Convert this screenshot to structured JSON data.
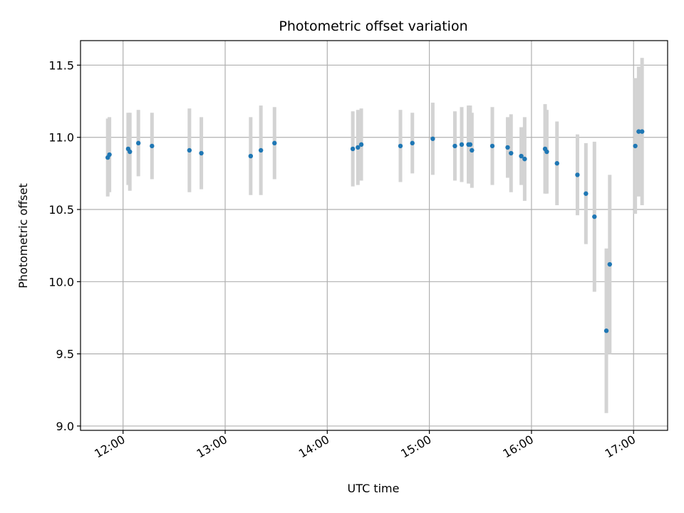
{
  "chart_data": {
    "type": "scatter",
    "title": "Photometric offset variation",
    "xlabel": "UTC time",
    "ylabel": "Photometric offset",
    "xlim": [
      "11:35",
      "17:20"
    ],
    "ylim": [
      8.97,
      11.67
    ],
    "xticks": [
      "12:00",
      "13:00",
      "14:00",
      "15:00",
      "16:00",
      "17:00"
    ],
    "yticks": [
      "9.0",
      "9.5",
      "10.0",
      "10.5",
      "11.0",
      "11.5"
    ],
    "grid": true,
    "colors": {
      "points": "#1f77b4",
      "errorbars": "#d3d3d3",
      "grid": "#b0b0b0"
    },
    "points": [
      {
        "x": "11:51",
        "y": 10.86,
        "yerr": 0.27
      },
      {
        "x": "11:52",
        "y": 10.88,
        "yerr": 0.26
      },
      {
        "x": "12:03",
        "y": 10.92,
        "yerr": 0.25
      },
      {
        "x": "12:04",
        "y": 10.9,
        "yerr": 0.27
      },
      {
        "x": "12:09",
        "y": 10.96,
        "yerr": 0.23
      },
      {
        "x": "12:17",
        "y": 10.94,
        "yerr": 0.23
      },
      {
        "x": "12:39",
        "y": 10.91,
        "yerr": 0.29
      },
      {
        "x": "12:46",
        "y": 10.89,
        "yerr": 0.25
      },
      {
        "x": "13:15",
        "y": 10.87,
        "yerr": 0.27
      },
      {
        "x": "13:21",
        "y": 10.91,
        "yerr": 0.31
      },
      {
        "x": "13:29",
        "y": 10.96,
        "yerr": 0.25
      },
      {
        "x": "14:15",
        "y": 10.92,
        "yerr": 0.26
      },
      {
        "x": "14:18",
        "y": 10.93,
        "yerr": 0.26
      },
      {
        "x": "14:20",
        "y": 10.95,
        "yerr": 0.25
      },
      {
        "x": "14:43",
        "y": 10.94,
        "yerr": 0.25
      },
      {
        "x": "14:50",
        "y": 10.96,
        "yerr": 0.21
      },
      {
        "x": "15:02",
        "y": 10.99,
        "yerr": 0.25
      },
      {
        "x": "15:15",
        "y": 10.94,
        "yerr": 0.24
      },
      {
        "x": "15:19",
        "y": 10.95,
        "yerr": 0.26
      },
      {
        "x": "15:23",
        "y": 10.95,
        "yerr": 0.27
      },
      {
        "x": "15:24",
        "y": 10.95,
        "yerr": 0.27
      },
      {
        "x": "15:25",
        "y": 10.91,
        "yerr": 0.26
      },
      {
        "x": "15:37",
        "y": 10.94,
        "yerr": 0.27
      },
      {
        "x": "15:46",
        "y": 10.93,
        "yerr": 0.21
      },
      {
        "x": "15:48",
        "y": 10.89,
        "yerr": 0.27
      },
      {
        "x": "15:54",
        "y": 10.87,
        "yerr": 0.2
      },
      {
        "x": "15:56",
        "y": 10.85,
        "yerr": 0.29
      },
      {
        "x": "16:08",
        "y": 10.92,
        "yerr": 0.31
      },
      {
        "x": "16:09",
        "y": 10.9,
        "yerr": 0.29
      },
      {
        "x": "16:15",
        "y": 10.82,
        "yerr": 0.29
      },
      {
        "x": "16:27",
        "y": 10.74,
        "yerr": 0.28
      },
      {
        "x": "16:32",
        "y": 10.61,
        "yerr": 0.35
      },
      {
        "x": "16:37",
        "y": 10.45,
        "yerr": 0.52
      },
      {
        "x": "16:44",
        "y": 9.66,
        "yerr": 0.57
      },
      {
        "x": "16:46",
        "y": 10.12,
        "yerr": 0.62
      },
      {
        "x": "17:01",
        "y": 10.94,
        "yerr": 0.47
      },
      {
        "x": "17:03",
        "y": 11.04,
        "yerr": 0.45
      },
      {
        "x": "17:05",
        "y": 11.04,
        "yerr": 0.51
      }
    ]
  }
}
